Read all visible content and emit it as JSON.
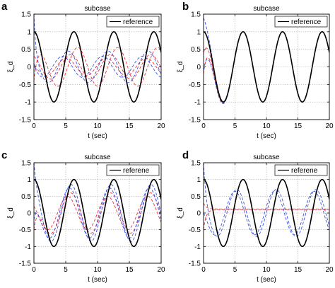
{
  "figure": {
    "colors": {
      "reference": "#000000",
      "red": "#e8343a",
      "blue": "#3a52e8"
    },
    "xlim": [
      0,
      20
    ],
    "ylim": [
      -1.5,
      1.5
    ],
    "xticks": [
      0,
      5,
      10,
      15,
      20
    ],
    "yticks": [
      1.5,
      1,
      0.5,
      0,
      -0.5,
      -1,
      -1.5
    ],
    "ytick_labels": [
      "1.5",
      "1",
      "0.5",
      "0",
      "-0.5",
      "-1",
      "-1.5"
    ]
  },
  "chart_data": [
    {
      "type": "line",
      "panel": "a",
      "title": "subcase",
      "xlabel": "t (sec)",
      "ylabel": "ξ_d",
      "xlim": [
        0,
        20
      ],
      "ylim": [
        -1.5,
        1.5
      ],
      "grid": true,
      "legend": {
        "position": "top-right",
        "entries": [
          "reference"
        ]
      },
      "series": [
        {
          "name": "reference",
          "style": "solid",
          "color": "black",
          "fn": "cos",
          "amp": 1.0,
          "omega": 1.0,
          "phase": 0,
          "y0": 1.0,
          "tau": 0.2
        },
        {
          "style": "dashed",
          "color": "red",
          "fn": "cos",
          "amp": 0.55,
          "omega": 1.0,
          "phase": -0.6,
          "y0": -0.4,
          "tau": 0.6
        },
        {
          "style": "dashed",
          "color": "red",
          "fn": "cos",
          "amp": 0.35,
          "omega": 1.0,
          "phase": 0.5,
          "y0": 0.3,
          "tau": 0.5
        },
        {
          "style": "dashed",
          "color": "red",
          "fn": "cos",
          "amp": 0.25,
          "omega": 1.0,
          "phase": 1.2,
          "y0": 0.0,
          "tau": 0.5
        },
        {
          "style": "dashed",
          "color": "blue",
          "fn": "cos",
          "amp": 0.45,
          "omega": 1.0,
          "phase": 0.9,
          "y0": 1.5,
          "tau": 0.3
        },
        {
          "style": "dashed",
          "color": "blue",
          "fn": "cos",
          "amp": 0.3,
          "omega": 1.0,
          "phase": 1.8,
          "y0": 0.1,
          "tau": 0.5
        }
      ]
    },
    {
      "type": "line",
      "panel": "b",
      "title": "subcase",
      "xlabel": "t (sec)",
      "ylabel": "ξ_d",
      "xlim": [
        0,
        20
      ],
      "ylim": [
        -1.5,
        1.5
      ],
      "grid": true,
      "legend": {
        "position": "top-right",
        "entries": [
          "reference"
        ]
      },
      "series": [
        {
          "name": "reference",
          "style": "solid",
          "color": "black",
          "fn": "cos",
          "amp": 1.0,
          "omega": 1.0,
          "phase": 0,
          "y0": 1.0,
          "tau": 0.2
        },
        {
          "style": "dashed",
          "color": "red",
          "fn": "cos",
          "amp": 1.0,
          "omega": 1.0,
          "phase": 0,
          "y0": -0.2,
          "tau": 0.8
        },
        {
          "style": "dashed",
          "color": "red",
          "fn": "cos",
          "amp": 1.0,
          "omega": 1.0,
          "phase": 0,
          "y0": 0.4,
          "tau": 0.9
        },
        {
          "style": "dashed",
          "color": "blue",
          "fn": "cos",
          "amp": 1.0,
          "omega": 1.0,
          "phase": 0,
          "y0": 1.4,
          "tau": 0.8
        },
        {
          "style": "dashed",
          "color": "blue",
          "fn": "cos",
          "amp": 1.0,
          "omega": 1.0,
          "phase": 0,
          "y0": -0.1,
          "tau": 1.0
        }
      ]
    },
    {
      "type": "line",
      "panel": "c",
      "title": "subcase",
      "xlabel": "t (sec)",
      "ylabel": "ξ_d",
      "xlim": [
        0,
        20
      ],
      "ylim": [
        -1.5,
        1.5
      ],
      "grid": true,
      "legend": {
        "position": "top-right",
        "entries": [
          "referene"
        ]
      },
      "series": [
        {
          "name": "referene",
          "style": "solid",
          "color": "black",
          "fn": "cos",
          "amp": 1.0,
          "omega": 1.0,
          "phase": 0,
          "y0": 1.0,
          "tau": 0.2
        },
        {
          "style": "dashed",
          "color": "red",
          "fn": "cos",
          "amp": 0.6,
          "omega": 1.0,
          "phase": 0.5,
          "y0": -0.5,
          "tau": 0.6
        },
        {
          "style": "dashed",
          "color": "red",
          "fn": "cos",
          "amp": 0.5,
          "omega": 1.0,
          "phase": 1.0,
          "y0": 0.2,
          "tau": 0.6
        },
        {
          "style": "dashed",
          "color": "blue",
          "fn": "cos",
          "amp": 0.85,
          "omega": 1.0,
          "phase": 0.45,
          "y0": 1.5,
          "tau": 0.4
        },
        {
          "style": "dashed",
          "color": "blue",
          "fn": "cos",
          "amp": 0.75,
          "omega": 1.0,
          "phase": 0.7,
          "y0": -0.2,
          "tau": 0.5
        }
      ]
    },
    {
      "type": "line",
      "panel": "d",
      "title": "subcase",
      "xlabel": "t (sec)",
      "ylabel": "ξ_d",
      "xlim": [
        0,
        20
      ],
      "ylim": [
        -1.5,
        1.5
      ],
      "grid": true,
      "legend": {
        "position": "top-right",
        "entries": [
          "referene"
        ]
      },
      "series": [
        {
          "name": "referene",
          "style": "solid",
          "color": "black",
          "fn": "cos",
          "amp": 1.0,
          "omega": 1.0,
          "phase": 0,
          "y0": 1.0,
          "tau": 0.2
        },
        {
          "style": "dashed",
          "color": "red",
          "fn": "const",
          "amp": 0.1,
          "omega": 1.0,
          "phase": 0,
          "y0": -0.5,
          "tau": 0.4
        },
        {
          "style": "dashed",
          "color": "red",
          "fn": "const",
          "amp": 0.12,
          "omega": 1.0,
          "phase": 0,
          "y0": 0.3,
          "tau": 0.4
        },
        {
          "style": "dashed",
          "color": "blue",
          "fn": "cos",
          "amp": 0.7,
          "omega": 1.0,
          "phase": 1.0,
          "y0": 1.5,
          "tau": 0.4
        },
        {
          "style": "dashed",
          "color": "blue",
          "fn": "cos",
          "amp": 0.65,
          "omega": 1.0,
          "phase": 1.3,
          "y0": 0.0,
          "tau": 0.6
        }
      ]
    }
  ]
}
